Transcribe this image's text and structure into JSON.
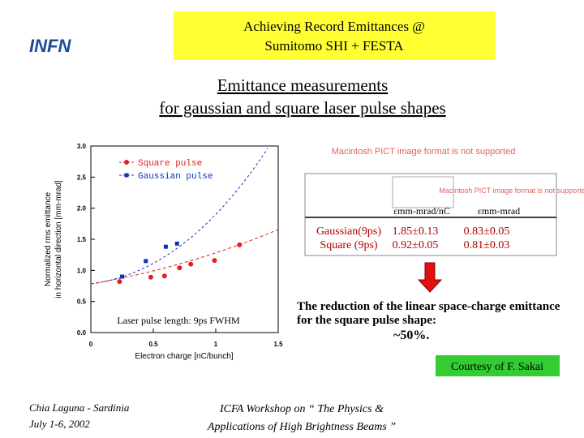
{
  "header": {
    "title_lines": [
      "Achieving Record Emittances  @",
      "Sumitomo SHI + FESTA"
    ],
    "logo": "INFN"
  },
  "title_lines": [
    "Emittance measurements",
    "for gaussian and square laser pulse shapes"
  ],
  "placeholders": [
    "Macintosh PICT image format is not supported",
    "Macintosh PICT image format is not supported"
  ],
  "chart": {
    "type": "scatter",
    "y_label_lines": [
      "Normalized rms emittance",
      "in horizontal direction  [mm-mrad]"
    ],
    "x_label": "Electron charge   [nC/bunch]",
    "annotation": "Laser pulse length: 9ps FWHM",
    "xlim": [
      0,
      1.5
    ],
    "xticks": [
      0,
      0.5,
      1,
      1.5
    ],
    "ylim": [
      0,
      3
    ],
    "yticks": [
      {
        "value": 0,
        "label": "0.0"
      },
      0.5,
      {
        "value": 1,
        "label": "1.0"
      },
      1.5,
      {
        "value": 2,
        "label": "2.0"
      },
      2.5,
      {
        "value": 3,
        "label": "3.0"
      }
    ],
    "series": [
      {
        "name": "Square pulse",
        "color": "#e02020",
        "x": [
          0.23,
          0.48,
          0.59,
          0.71,
          0.8,
          0.99,
          1.19
        ],
        "values": [
          0.82,
          0.89,
          0.91,
          1.04,
          1.1,
          1.16,
          1.41
        ]
      },
      {
        "name": "Gaussian pulse",
        "color": "#1030c0",
        "x": [
          0.25,
          0.44,
          0.6,
          0.69
        ],
        "values": [
          0.9,
          1.15,
          1.38,
          1.43
        ]
      }
    ]
  },
  "table": {
    "header": [
      "εmm-mrad/nC",
      "εmm-mrad"
    ],
    "rows": [
      [
        "Gaussian(9ps)",
        "1.85±0.13",
        "0.83±0.05"
      ],
      [
        "Square    (9ps)",
        "0.92±0.05",
        "0.81±0.03"
      ]
    ]
  },
  "conclusion_lines": [
    "The reduction of the linear space-charge emittance",
    "for the square pulse shape:",
    "~50%."
  ],
  "courtesy": "Courtesy of F. Sakai",
  "footer": {
    "left_lines": [
      "Chia Laguna - Sardinia",
      "July 1-6,  2002"
    ],
    "center_lines": [
      "ICFA Workshop on “ The Physics &",
      "Applications of High Brightness Beams ”"
    ]
  }
}
